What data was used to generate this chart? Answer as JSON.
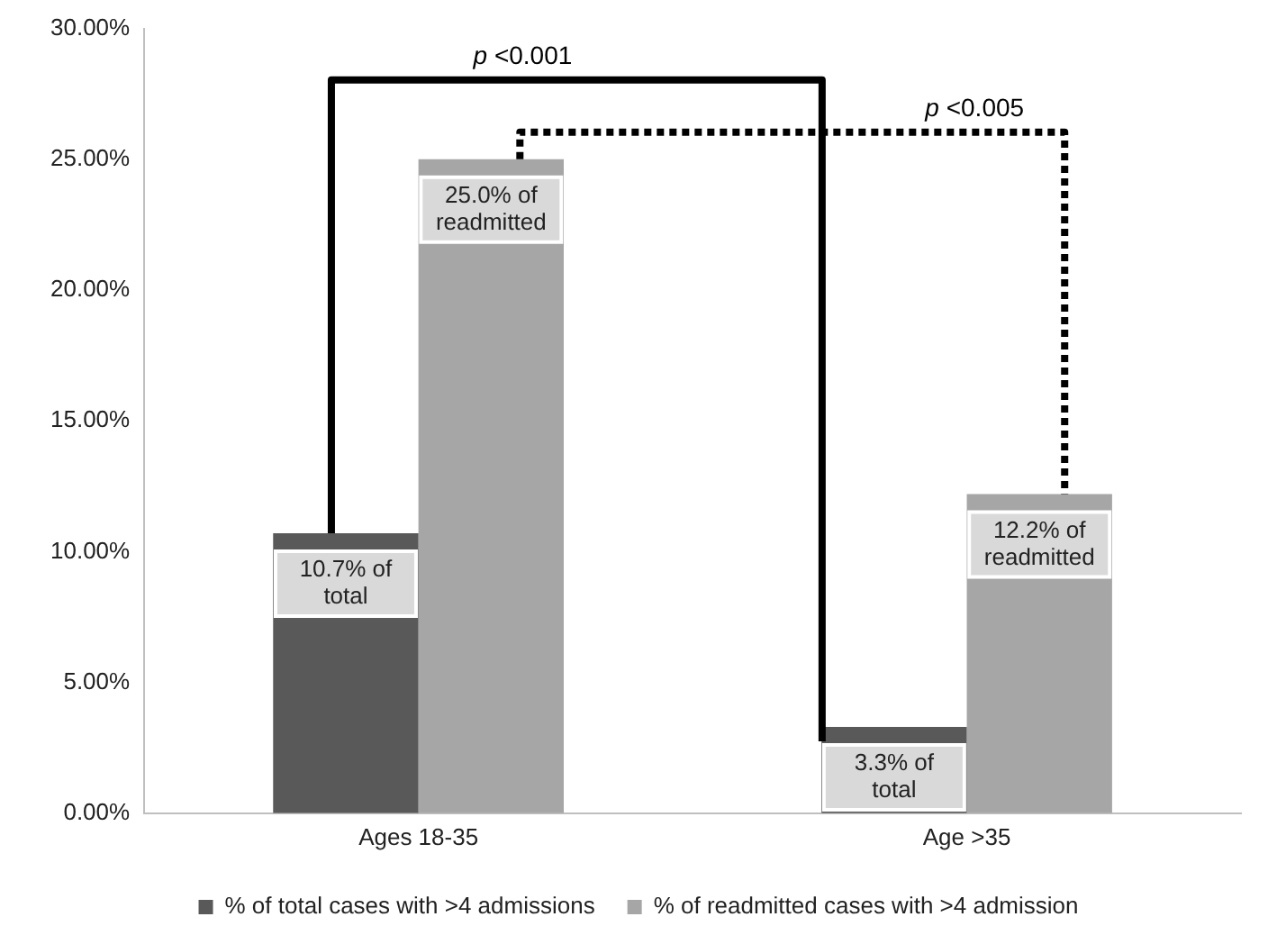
{
  "chart_data": {
    "type": "bar",
    "categories": [
      "Ages 18-35",
      "Age >35"
    ],
    "series": [
      {
        "name": "% of total cases with >4 admissions",
        "color": "#595959",
        "values": [
          10.7,
          3.3
        ],
        "value_labels": [
          "10.7% of total",
          "3.3% of total"
        ]
      },
      {
        "name": "% of readmitted cases with >4 admission",
        "color": "#a6a6a6",
        "values": [
          25.0,
          12.2
        ],
        "value_labels": [
          "25.0% of readmitted",
          "12.2% of readmitted"
        ]
      }
    ],
    "ylim": [
      0,
      30
    ],
    "yticks": [
      {
        "value": 0,
        "label": "0.00%"
      },
      {
        "value": 5,
        "label": "5.00%"
      },
      {
        "value": 10,
        "label": "10.00%"
      },
      {
        "value": 15,
        "label": "15.00%"
      },
      {
        "value": 20,
        "label": "20.00%"
      },
      {
        "value": 25,
        "label": "25.00%"
      },
      {
        "value": 30,
        "label": "30.00%"
      }
    ],
    "grid": false,
    "legend": "bottom",
    "annotations": [
      "p <0.001",
      "p <0.005"
    ]
  }
}
